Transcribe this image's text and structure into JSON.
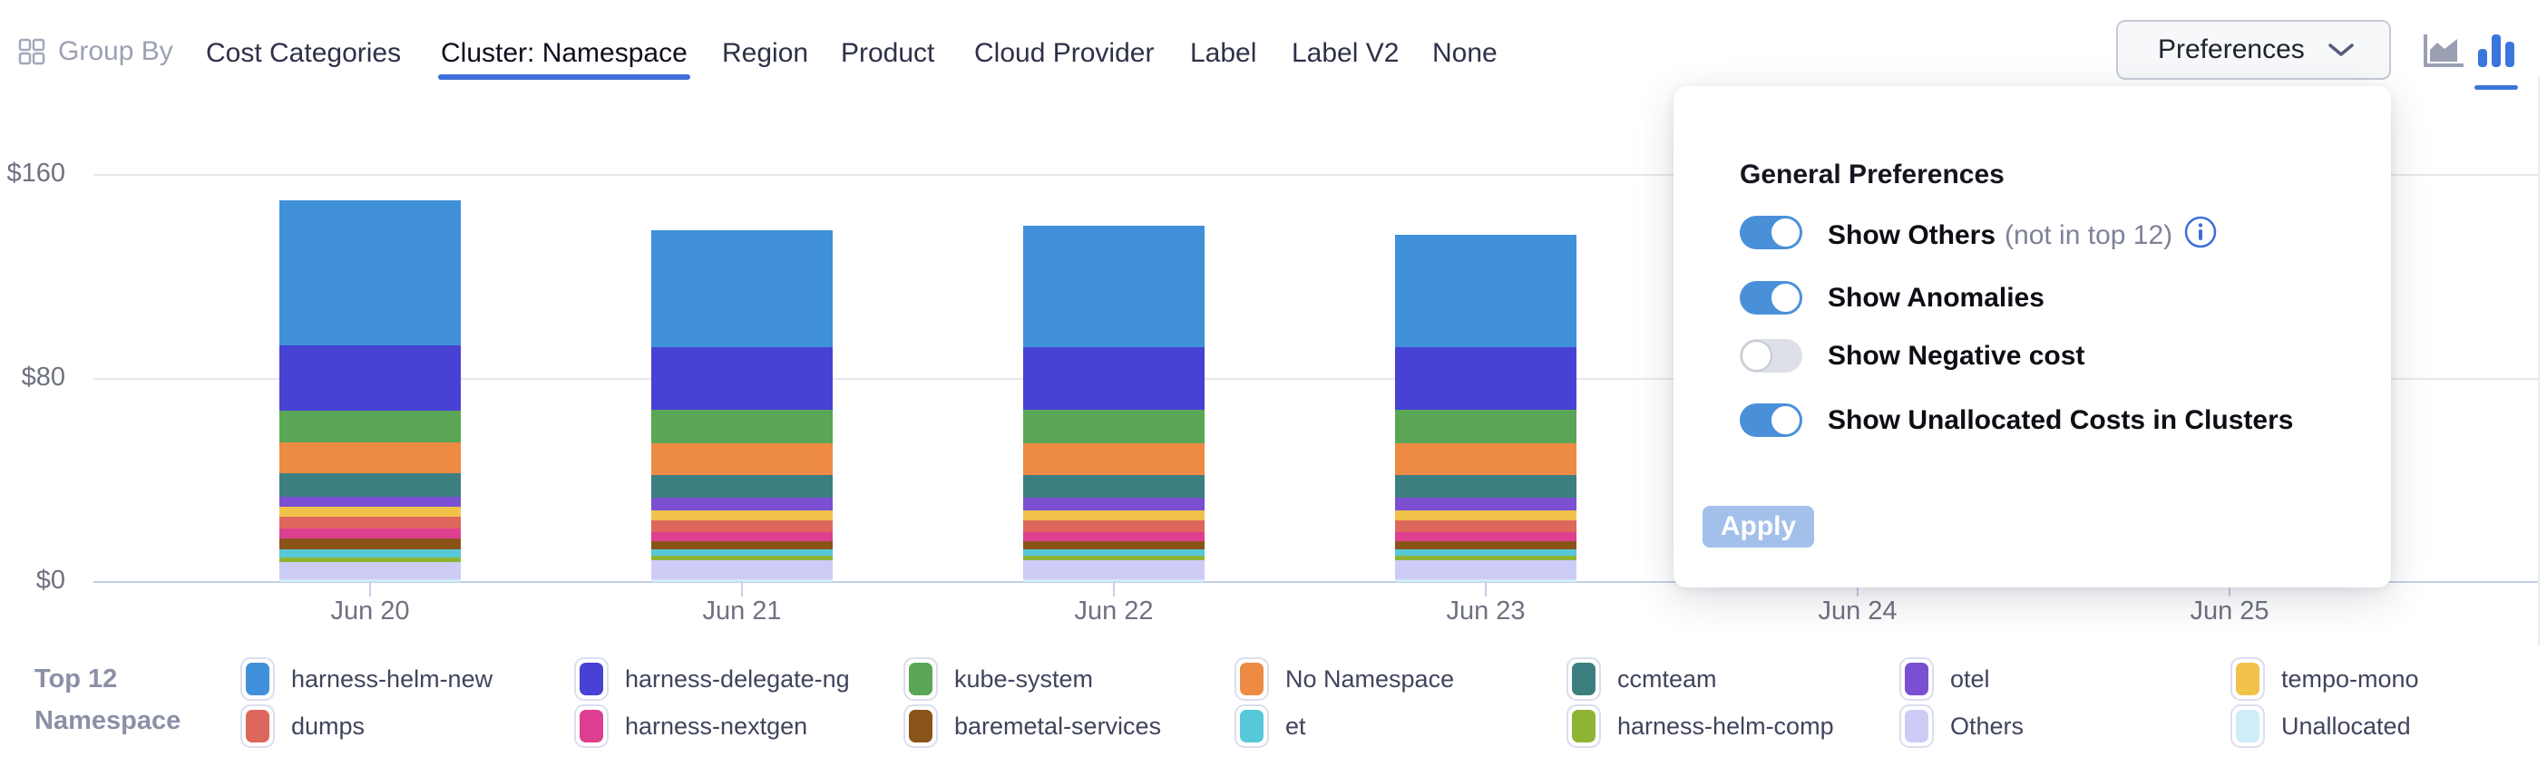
{
  "header": {
    "group_by_label": "Group By",
    "tabs": [
      {
        "label": "Cost Categories",
        "selected": false
      },
      {
        "label": "Cluster: Namespace",
        "selected": true
      },
      {
        "label": "Region",
        "selected": false
      },
      {
        "label": "Product",
        "selected": false
      },
      {
        "label": "Cloud Provider",
        "selected": false
      },
      {
        "label": "Label",
        "selected": false
      },
      {
        "label": "Label V2",
        "selected": false
      },
      {
        "label": "None",
        "selected": false
      }
    ],
    "preferences_button_label": "Preferences",
    "chart_type_icons": [
      {
        "name": "area-chart-icon",
        "active": false,
        "color": "#9b9fb2"
      },
      {
        "name": "bar-chart-icon",
        "active": true,
        "color": "#3b76dc"
      }
    ]
  },
  "preferences_panel": {
    "title": "General Preferences",
    "options": [
      {
        "label": "Show Others",
        "suffix": "(not in top 12)",
        "has_info_icon": true,
        "enabled": true
      },
      {
        "label": "Show Anomalies",
        "suffix": "",
        "has_info_icon": false,
        "enabled": true
      },
      {
        "label": "Show Negative cost",
        "suffix": "",
        "has_info_icon": false,
        "enabled": false
      },
      {
        "label": "Show Unallocated Costs in Clusters",
        "suffix": "",
        "has_info_icon": false,
        "enabled": true
      }
    ],
    "apply_label": "Apply",
    "accent_color": "#4a90d9",
    "apply_color": "#a2c0ea"
  },
  "legend": {
    "title_line1": "Top 12",
    "title_line2": "Namespace",
    "items": [
      {
        "name": "harness-helm-new",
        "color": "#4190da"
      },
      {
        "name": "harness-delegate-ng",
        "color": "#4741d4"
      },
      {
        "name": "kube-system",
        "color": "#5aa656"
      },
      {
        "name": "No Namespace",
        "color": "#ed8a44"
      },
      {
        "name": "ccmteam",
        "color": "#3d7f80"
      },
      {
        "name": "otel",
        "color": "#7a4fd2"
      },
      {
        "name": "tempo-mono",
        "color": "#f0c24a"
      },
      {
        "name": "dumps",
        "color": "#dd675c"
      },
      {
        "name": "harness-nextgen",
        "color": "#de3f90"
      },
      {
        "name": "baremetal-services",
        "color": "#8a5317"
      },
      {
        "name": "et",
        "color": "#57c8d8"
      },
      {
        "name": "harness-helm-comp",
        "color": "#8fb434"
      },
      {
        "name": "Others",
        "color": "#cdccf6"
      },
      {
        "name": "Unallocated",
        "color": "#cfecf9"
      }
    ]
  },
  "chart_data": {
    "type": "bar",
    "stacked": true,
    "title": "",
    "xlabel": "",
    "ylabel": "",
    "ylim": [
      0,
      160
    ],
    "y_ticks": [
      "$0",
      "$80",
      "$160"
    ],
    "categories": [
      "Jun 20",
      "Jun 21",
      "Jun 22",
      "Jun 23",
      "Jun 24",
      "Jun 25"
    ],
    "note": "values in USD estimated from axis; Jun 24 and Jun 25 columns are hidden behind the preferences panel",
    "series": [
      {
        "name": "Unallocated",
        "color": "#cfecf9",
        "values": [
          1.0,
          1.2,
          1.2,
          1.2,
          null,
          null
        ]
      },
      {
        "name": "Others",
        "color": "#cdccf6",
        "values": [
          7.0,
          7.2,
          7.2,
          7.2,
          null,
          null
        ]
      },
      {
        "name": "harness-helm-comp",
        "color": "#8fb434",
        "values": [
          1.6,
          1.8,
          1.8,
          1.8,
          null,
          null
        ]
      },
      {
        "name": "et",
        "color": "#57c8d8",
        "values": [
          3.3,
          2.6,
          2.6,
          2.6,
          null,
          null
        ]
      },
      {
        "name": "baremetal-services",
        "color": "#8a5317",
        "values": [
          4.1,
          3.3,
          3.3,
          3.3,
          null,
          null
        ]
      },
      {
        "name": "harness-nextgen",
        "color": "#de3f90",
        "values": [
          4.1,
          3.6,
          3.6,
          3.6,
          null,
          null
        ]
      },
      {
        "name": "dumps",
        "color": "#dd675c",
        "values": [
          4.6,
          4.5,
          4.5,
          4.5,
          null,
          null
        ]
      },
      {
        "name": "tempo-mono",
        "color": "#f0c24a",
        "values": [
          3.9,
          4.1,
          4.1,
          4.1,
          null,
          null
        ]
      },
      {
        "name": "otel",
        "color": "#7a4fd2",
        "values": [
          3.9,
          4.9,
          4.9,
          4.9,
          null,
          null
        ]
      },
      {
        "name": "ccmteam",
        "color": "#3d7f80",
        "values": [
          9.2,
          8.9,
          8.9,
          8.9,
          null,
          null
        ]
      },
      {
        "name": "No Namespace",
        "color": "#ed8a44",
        "values": [
          12.2,
          12.4,
          12.4,
          12.4,
          null,
          null
        ]
      },
      {
        "name": "kube-system",
        "color": "#5aa656",
        "values": [
          12.5,
          13.1,
          13.1,
          13.1,
          null,
          null
        ]
      },
      {
        "name": "harness-delegate-ng",
        "color": "#4741d4",
        "values": [
          25.7,
          24.6,
          24.6,
          24.6,
          null,
          null
        ]
      },
      {
        "name": "harness-helm-new",
        "color": "#4190da",
        "values": [
          57.0,
          46.2,
          47.8,
          44.4,
          null,
          null
        ]
      }
    ]
  }
}
